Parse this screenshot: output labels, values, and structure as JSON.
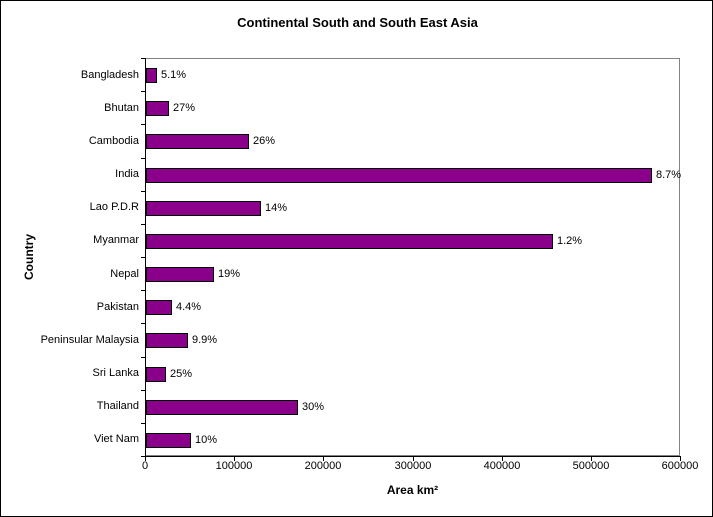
{
  "chart_data": {
    "type": "bar",
    "orientation": "horizontal",
    "title": "Continental South and South East Asia",
    "xlabel": "Area km²",
    "ylabel": "Country",
    "xlim": [
      0,
      600000
    ],
    "x_tick_labels": [
      "0",
      "100000",
      "200000",
      "300000",
      "400000",
      "500000",
      "600000"
    ],
    "grid": false,
    "legend": "none",
    "bar_color": "#8B008B",
    "bar_border_color": "#000000",
    "plot_border_color": "#848284",
    "categories": [
      "Bangladesh",
      "Bhutan",
      "Cambodia",
      "India",
      "Lao P.D.R",
      "Myanmar",
      "Nepal",
      "Pakistan",
      "Peninsular Malaysia",
      "Sri Lanka",
      "Thailand",
      "Viet Nam"
    ],
    "values": [
      12000,
      26000,
      116000,
      567000,
      129000,
      457000,
      76000,
      29000,
      47000,
      22000,
      171000,
      50000
    ],
    "data_labels": [
      "5.1%",
      "27%",
      "26%",
      "8.7%",
      "14%",
      "1.2%",
      "19%",
      "4.4%",
      "9.9%",
      "25%",
      "30%",
      "10%"
    ]
  }
}
